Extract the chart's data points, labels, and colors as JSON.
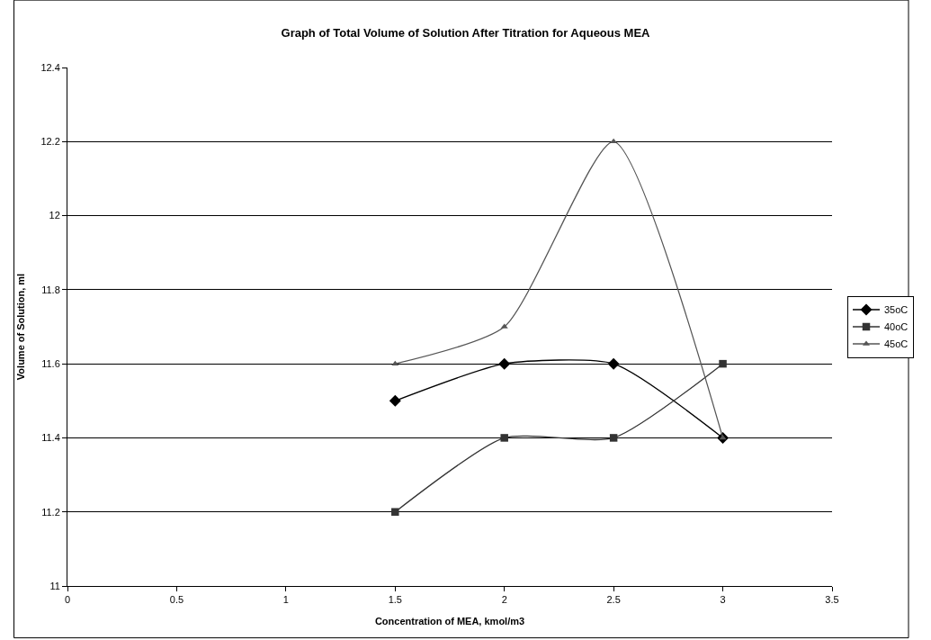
{
  "chart_data": {
    "type": "line",
    "title": "Graph of Total Volume of Solution After Titration for Aqueous MEA",
    "xlabel": "Concentration of MEA, kmol/m3",
    "ylabel": "Volume of Solution, ml",
    "x": [
      1.5,
      2,
      2.5,
      3
    ],
    "series": [
      {
        "name": "35oC",
        "color": "#000000",
        "marker": "diamond",
        "values": [
          11.5,
          11.6,
          11.6,
          11.4
        ]
      },
      {
        "name": "40oC",
        "color": "#333333",
        "marker": "square",
        "values": [
          11.2,
          11.4,
          11.4,
          11.6
        ]
      },
      {
        "name": "45oC",
        "color": "#555555",
        "marker": "triangle",
        "values": [
          11.6,
          11.7,
          12.2,
          11.4
        ]
      }
    ],
    "xlim": [
      0,
      3.5
    ],
    "xticks": [
      0,
      0.5,
      1,
      1.5,
      2,
      2.5,
      3,
      3.5
    ],
    "ylim": [
      11,
      12.4
    ],
    "yticks": [
      11,
      11.2,
      11.4,
      11.6,
      11.8,
      12,
      12.2,
      12.4
    ],
    "grid": "y",
    "legend": "right",
    "line_style": "solid"
  }
}
